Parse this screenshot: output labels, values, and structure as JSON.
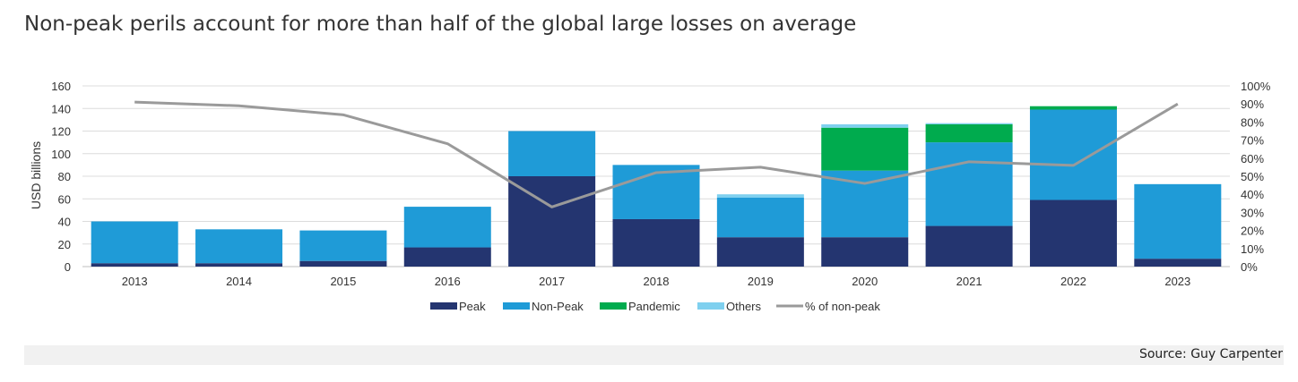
{
  "title": "Non-peak perils account for more than half of the global large losses on average",
  "source": "Source: Guy Carpenter",
  "colors": {
    "Peak": "#243570",
    "Non-Peak": "#1f9bd7",
    "Pandemic": "#00ab4e",
    "Others": "#7fd0ef",
    "line": "#9a9a9a",
    "grid": "#dcdcdc"
  },
  "chart_data": {
    "type": "bar",
    "stacked": true,
    "categories": [
      "2013",
      "2014",
      "2015",
      "2016",
      "2017",
      "2018",
      "2019",
      "2020",
      "2021",
      "2022",
      "2023"
    ],
    "series": [
      {
        "name": "Peak",
        "values": [
          3,
          3,
          5,
          17,
          80,
          42,
          26,
          26,
          36,
          59,
          7
        ]
      },
      {
        "name": "Non-Peak",
        "values": [
          37,
          30,
          27,
          36,
          40,
          48,
          35,
          59,
          74,
          80,
          66
        ]
      },
      {
        "name": "Pandemic",
        "values": [
          0,
          0,
          0,
          0,
          0,
          0,
          0,
          38,
          16,
          3,
          0
        ]
      },
      {
        "name": "Others",
        "values": [
          0,
          0,
          0,
          0,
          0,
          0,
          3,
          3,
          1,
          0,
          0
        ]
      }
    ],
    "line_series": {
      "name": "% of non-peak",
      "axis": "right",
      "values": [
        91,
        89,
        84,
        68,
        33,
        52,
        55,
        46,
        58,
        56,
        90
      ]
    },
    "ylabel": "USD billions",
    "ylim": [
      0,
      160
    ],
    "yticks": [
      0,
      20,
      40,
      60,
      80,
      100,
      120,
      140,
      160
    ],
    "y2lim": [
      0,
      100
    ],
    "y2ticks": [
      "0%",
      "10%",
      "20%",
      "30%",
      "40%",
      "50%",
      "60%",
      "70%",
      "80%",
      "90%",
      "100%"
    ],
    "grid": true,
    "legend_position": "bottom"
  }
}
